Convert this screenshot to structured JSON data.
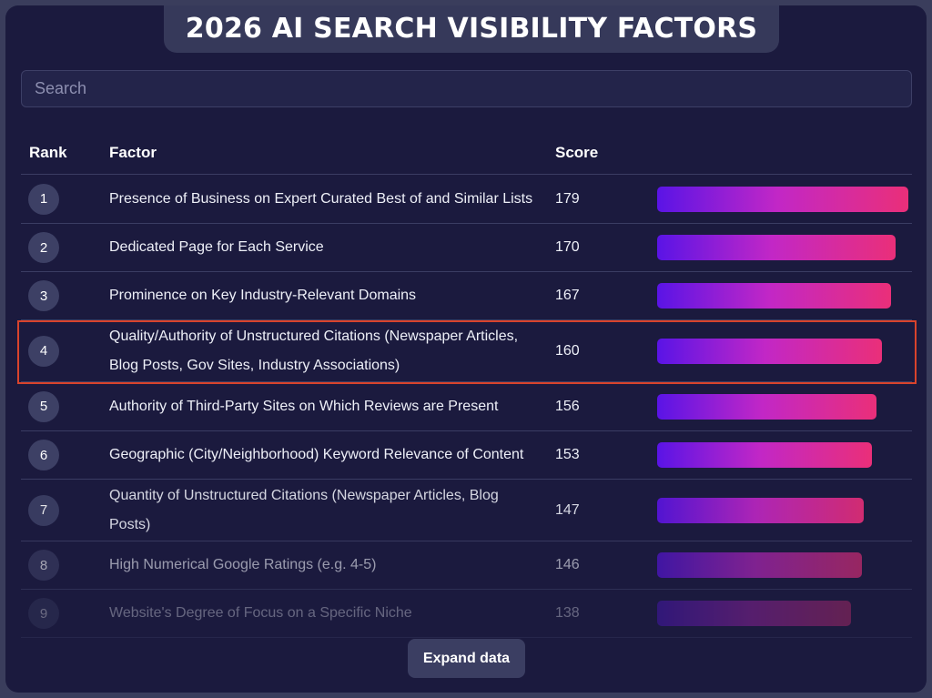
{
  "title": "2026 AI SEARCH VISIBILITY FACTORS",
  "search": {
    "placeholder": "Search",
    "value": ""
  },
  "table": {
    "columns": [
      "Rank",
      "Factor",
      "Score",
      ""
    ],
    "score_max": 179,
    "rows": [
      {
        "rank": "1",
        "factor": "Presence of Business on Expert Curated Best of and Similar Lists",
        "score": 179,
        "highlighted": false,
        "fade": 1
      },
      {
        "rank": "2",
        "factor": "Dedicated Page for Each Service",
        "score": 170,
        "highlighted": false,
        "fade": 1
      },
      {
        "rank": "3",
        "factor": "Prominence on Key Industry-Relevant Domains",
        "score": 167,
        "highlighted": false,
        "fade": 1
      },
      {
        "rank": "4",
        "factor": "Quality/Authority of Unstructured Citations (Newspaper Articles, Blog Posts, Gov Sites, Industry Associations)",
        "score": 160,
        "highlighted": true,
        "fade": 1
      },
      {
        "rank": "5",
        "factor": "Authority of Third-Party Sites on Which Reviews are Present",
        "score": 156,
        "highlighted": false,
        "fade": 1
      },
      {
        "rank": "6",
        "factor": "Geographic (City/Neighborhood) Keyword Relevance of Content",
        "score": 153,
        "highlighted": false,
        "fade": 1
      },
      {
        "rank": "7",
        "factor": "Quantity of Unstructured Citations (Newspaper Articles, Blog Posts)",
        "score": 147,
        "highlighted": false,
        "fade": 0.88
      },
      {
        "rank": "8",
        "factor": "High Numerical Google Ratings (e.g. 4-5)",
        "score": 146,
        "highlighted": false,
        "fade": 0.6
      },
      {
        "rank": "9",
        "factor": "Website's Degree of Focus on a Specific Niche",
        "score": 138,
        "highlighted": false,
        "fade": 0.35
      }
    ]
  },
  "expand_button": {
    "label": "Expand data"
  },
  "colors": {
    "highlight": "#d8432c",
    "bar_start": "#5a14e6",
    "bar_mid": "#c227c6",
    "bar_end": "#ea2f79",
    "background": "#1b1a3e"
  }
}
